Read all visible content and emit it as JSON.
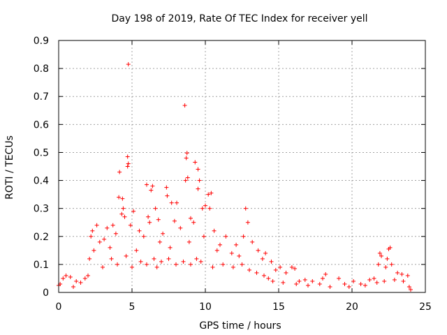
{
  "chart_data": {
    "type": "scatter",
    "title": "Day 198 of 2019, Rate Of TEC Index for receiver yell",
    "xlabel": "GPS time / hours",
    "ylabel": "ROTI / TECUs",
    "xlim": [
      0,
      25
    ],
    "ylim": [
      0,
      0.9
    ],
    "x_ticks": [
      "0",
      "5",
      "10",
      "15",
      "20",
      "25"
    ],
    "y_ticks": [
      "0",
      "0.1",
      "0.2",
      "0.3",
      "0.4",
      "0.5",
      "0.6",
      "0.7",
      "0.8",
      "0.9"
    ],
    "grid": true,
    "marker": "+",
    "color": "#ff0000",
    "series": [
      {
        "name": "ROTI",
        "points": [
          [
            4.75,
            0.815
          ],
          [
            8.6,
            0.668
          ],
          [
            4.7,
            0.485
          ],
          [
            8.75,
            0.498
          ],
          [
            8.7,
            0.48
          ],
          [
            9.3,
            0.465
          ],
          [
            9.5,
            0.44
          ],
          [
            4.15,
            0.43
          ],
          [
            4.75,
            0.46
          ],
          [
            4.7,
            0.45
          ],
          [
            8.8,
            0.41
          ],
          [
            8.65,
            0.4
          ],
          [
            9.6,
            0.4
          ],
          [
            6.0,
            0.385
          ],
          [
            6.4,
            0.38
          ],
          [
            7.35,
            0.375
          ],
          [
            9.5,
            0.37
          ],
          [
            6.3,
            0.365
          ],
          [
            10.4,
            0.355
          ],
          [
            10.2,
            0.35
          ],
          [
            7.4,
            0.345
          ],
          [
            4.1,
            0.34
          ],
          [
            4.35,
            0.335
          ],
          [
            8.05,
            0.32
          ],
          [
            7.7,
            0.32
          ],
          [
            6.6,
            0.3
          ],
          [
            12.75,
            0.3
          ],
          [
            9.8,
            0.3
          ],
          [
            4.4,
            0.3
          ],
          [
            10.0,
            0.31
          ],
          [
            4.3,
            0.28
          ],
          [
            10.3,
            0.3
          ],
          [
            5.1,
            0.29
          ],
          [
            4.5,
            0.27
          ],
          [
            6.1,
            0.27
          ],
          [
            6.8,
            0.26
          ],
          [
            7.9,
            0.255
          ],
          [
            9.0,
            0.265
          ],
          [
            9.2,
            0.25
          ],
          [
            6.2,
            0.25
          ],
          [
            3.7,
            0.24
          ],
          [
            2.6,
            0.24
          ],
          [
            3.3,
            0.23
          ],
          [
            2.3,
            0.22
          ],
          [
            12.9,
            0.25
          ],
          [
            4.9,
            0.24
          ],
          [
            5.5,
            0.22
          ],
          [
            8.3,
            0.23
          ],
          [
            10.6,
            0.22
          ],
          [
            11.4,
            0.2
          ],
          [
            2.2,
            0.2
          ],
          [
            3.9,
            0.21
          ],
          [
            5.8,
            0.2
          ],
          [
            7.1,
            0.21
          ],
          [
            9.9,
            0.2
          ],
          [
            12.6,
            0.2
          ],
          [
            13.2,
            0.18
          ],
          [
            2.8,
            0.18
          ],
          [
            3.1,
            0.19
          ],
          [
            6.9,
            0.18
          ],
          [
            8.9,
            0.18
          ],
          [
            11.0,
            0.17
          ],
          [
            12.1,
            0.17
          ],
          [
            13.6,
            0.15
          ],
          [
            14.1,
            0.14
          ],
          [
            2.4,
            0.15
          ],
          [
            3.5,
            0.16
          ],
          [
            5.3,
            0.15
          ],
          [
            7.6,
            0.16
          ],
          [
            10.8,
            0.15
          ],
          [
            11.8,
            0.14
          ],
          [
            22.6,
            0.16
          ],
          [
            22.5,
            0.155
          ],
          [
            21.9,
            0.14
          ],
          [
            22.0,
            0.13
          ],
          [
            22.4,
            0.12
          ],
          [
            2.1,
            0.12
          ],
          [
            4.6,
            0.13
          ],
          [
            6.5,
            0.12
          ],
          [
            9.4,
            0.12
          ],
          [
            12.3,
            0.13
          ],
          [
            13.9,
            0.12
          ],
          [
            14.5,
            0.11
          ],
          [
            15.1,
            0.09
          ],
          [
            15.9,
            0.09
          ],
          [
            16.1,
            0.085
          ],
          [
            15.5,
            0.07
          ],
          [
            14.8,
            0.08
          ],
          [
            22.7,
            0.1
          ],
          [
            22.3,
            0.09
          ],
          [
            21.8,
            0.1
          ],
          [
            23.1,
            0.07
          ],
          [
            23.4,
            0.065
          ],
          [
            23.8,
            0.06
          ],
          [
            0.5,
            0.06
          ],
          [
            0.8,
            0.055
          ],
          [
            0.3,
            0.05
          ],
          [
            1.2,
            0.04
          ],
          [
            1.5,
            0.035
          ],
          [
            1.8,
            0.05
          ],
          [
            0.1,
            0.03
          ],
          [
            0.0,
            0.025
          ],
          [
            18.2,
            0.065
          ],
          [
            18.0,
            0.05
          ],
          [
            19.1,
            0.05
          ],
          [
            16.8,
            0.045
          ],
          [
            17.3,
            0.04
          ],
          [
            20.1,
            0.04
          ],
          [
            21.2,
            0.045
          ],
          [
            21.5,
            0.05
          ],
          [
            19.5,
            0.03
          ],
          [
            20.6,
            0.03
          ],
          [
            17.8,
            0.03
          ],
          [
            16.4,
            0.04
          ],
          [
            14.3,
            0.05
          ],
          [
            23.9,
            0.02
          ],
          [
            24.0,
            0.01
          ],
          [
            1.0,
            0.02
          ],
          [
            2.0,
            0.06
          ],
          [
            3.0,
            0.09
          ],
          [
            3.6,
            0.12
          ],
          [
            4.0,
            0.1
          ],
          [
            5.0,
            0.09
          ],
          [
            5.6,
            0.11
          ],
          [
            6.0,
            0.1
          ],
          [
            6.7,
            0.09
          ],
          [
            7.0,
            0.11
          ],
          [
            7.5,
            0.12
          ],
          [
            8.0,
            0.1
          ],
          [
            8.5,
            0.11
          ],
          [
            9.0,
            0.1
          ],
          [
            9.7,
            0.11
          ],
          [
            10.5,
            0.09
          ],
          [
            11.2,
            0.1
          ],
          [
            11.9,
            0.09
          ],
          [
            12.5,
            0.1
          ],
          [
            13.0,
            0.08
          ],
          [
            13.5,
            0.07
          ],
          [
            14.0,
            0.06
          ],
          [
            14.6,
            0.04
          ],
          [
            15.3,
            0.035
          ],
          [
            16.2,
            0.03
          ],
          [
            17.0,
            0.025
          ],
          [
            18.5,
            0.02
          ],
          [
            19.8,
            0.02
          ],
          [
            20.9,
            0.025
          ],
          [
            21.7,
            0.035
          ],
          [
            22.2,
            0.04
          ],
          [
            22.9,
            0.045
          ],
          [
            23.5,
            0.04
          ]
        ]
      }
    ]
  }
}
